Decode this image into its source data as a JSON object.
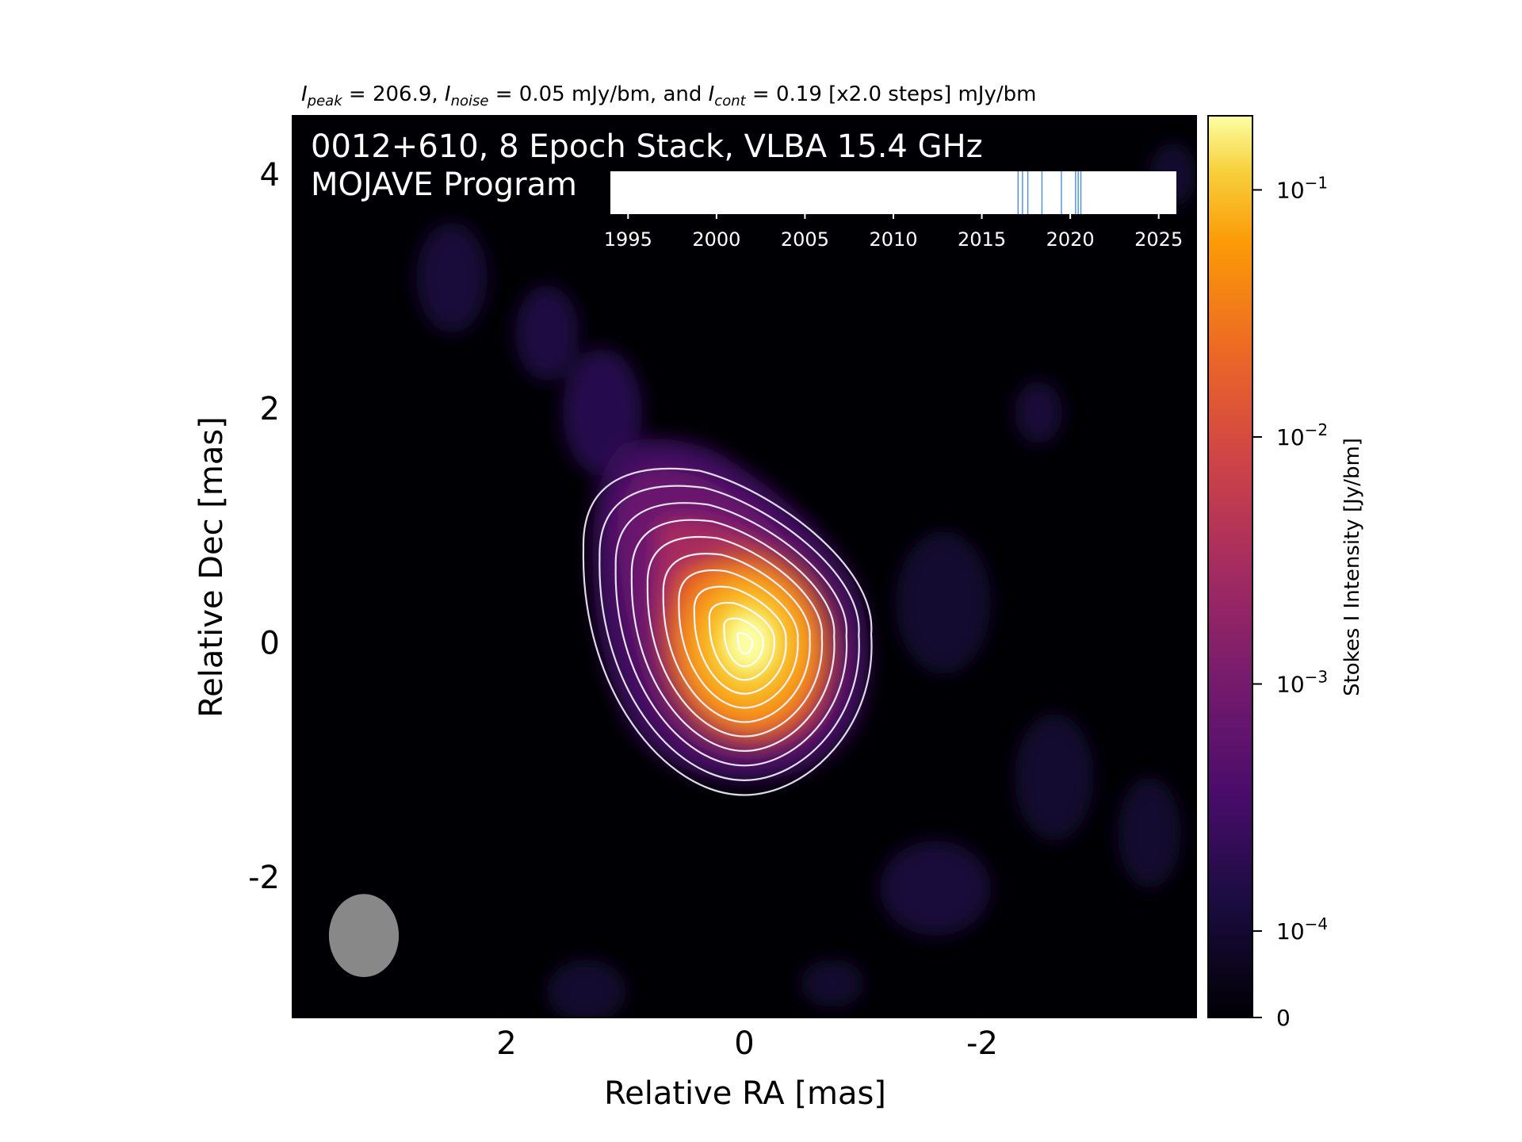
{
  "header": {
    "peak_symbol": "I",
    "peak_sub": "peak",
    "peak_text": " = 206.9, ",
    "noise_symbol": "I",
    "noise_sub": "noise",
    "noise_text": " = 0.05 mJy/bm, and ",
    "cont_symbol": "I",
    "cont_sub": "cont",
    "cont_text": " = 0.19 [x2.0 steps] mJy/bm"
  },
  "overlay": {
    "title_line1": "0012+610, 8 Epoch Stack, VLBA 15.4 GHz",
    "title_line2": "MOJAVE Program"
  },
  "colorbar": {
    "label": "Stokes I Intensity [Jy/bm]",
    "colormap": "inferno",
    "ticks": [
      {
        "base": "10",
        "exp": "−1",
        "value": 0.1
      },
      {
        "base": "10",
        "exp": "−2",
        "value": 0.01
      },
      {
        "base": "10",
        "exp": "−3",
        "value": 0.001
      },
      {
        "base": "10",
        "exp": "−4",
        "value": 0.0001
      },
      {
        "base": "0",
        "exp": "",
        "value": 0
      }
    ]
  },
  "chart_data": {
    "type": "heatmap",
    "xlabel": "Relative RA [mas]",
    "ylabel": "Relative Dec [mas]",
    "xlim": [
      3.8,
      -3.8
    ],
    "ylim": [
      -3.2,
      4.5
    ],
    "xticks": [
      "2",
      "0",
      "-2"
    ],
    "xtick_values": [
      2,
      0,
      -2
    ],
    "yticks": [
      "4",
      "2",
      "0",
      "-2"
    ],
    "ytick_values": [
      4,
      2,
      0,
      -2
    ],
    "peak_position_mas": [
      0,
      0
    ],
    "contour_levels_mjy": [
      0.19,
      0.38,
      0.76,
      1.52,
      3.04,
      6.08,
      12.16,
      24.32,
      48.64,
      97.28,
      194.56
    ],
    "beam": {
      "major_mas": 0.71,
      "minor_mas": 0.6,
      "color": "#888888",
      "ra_mas": 3.2,
      "dec_mas": -2.5
    },
    "timeline": {
      "type": "epochs",
      "xlim": [
        1994,
        2026
      ],
      "ticks": [
        "1995",
        "2000",
        "2005",
        "2010",
        "2015",
        "2020",
        "2025"
      ],
      "tick_values": [
        1995,
        2000,
        2005,
        2010,
        2015,
        2020,
        2025
      ],
      "epochs": [
        2017.05,
        2017.3,
        2017.6,
        2018.4,
        2019.5,
        2020.3,
        2020.45,
        2020.6
      ],
      "line_color": "#4a90d9"
    }
  }
}
